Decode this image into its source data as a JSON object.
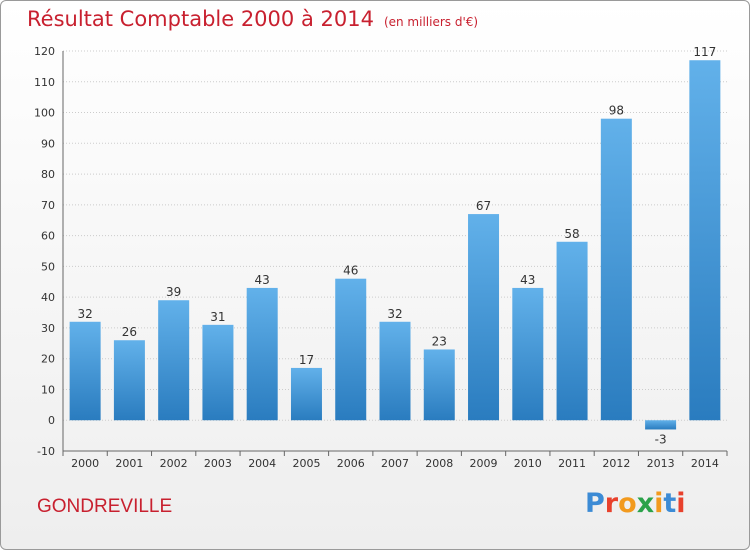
{
  "header": {
    "title": "Résultat Comptable 2000 à 2014",
    "subtitle": "(en milliers d'€)"
  },
  "footer": {
    "commune": "GONDREVILLE",
    "logo": "Proxiti"
  },
  "colors": {
    "title": "#c8202f",
    "bar_light": "#62b1ea",
    "bar_dark": "#2a7cbf",
    "gridline": "#cccccc",
    "logo_letters": [
      "#3c8bd5",
      "#e8412c",
      "#f29a1e",
      "#2ba24a",
      "#f29a1e",
      "#3c8bd5",
      "#e8412c"
    ]
  },
  "chart_data": {
    "type": "bar",
    "title": "Résultat Comptable 2000 à 2014",
    "subtitle": "(en milliers d'€)",
    "categories": [
      "2000",
      "2001",
      "2002",
      "2003",
      "2004",
      "2005",
      "2006",
      "2007",
      "2008",
      "2009",
      "2010",
      "2011",
      "2012",
      "2013",
      "2014"
    ],
    "values": [
      32,
      26,
      39,
      31,
      43,
      17,
      46,
      32,
      23,
      67,
      43,
      58,
      98,
      -3,
      117
    ],
    "ylim": [
      -10,
      120
    ],
    "yticks": [
      -10,
      0,
      10,
      20,
      30,
      40,
      50,
      60,
      70,
      80,
      90,
      100,
      110,
      120
    ],
    "grid": true,
    "legend": "none",
    "data_labels": true
  }
}
